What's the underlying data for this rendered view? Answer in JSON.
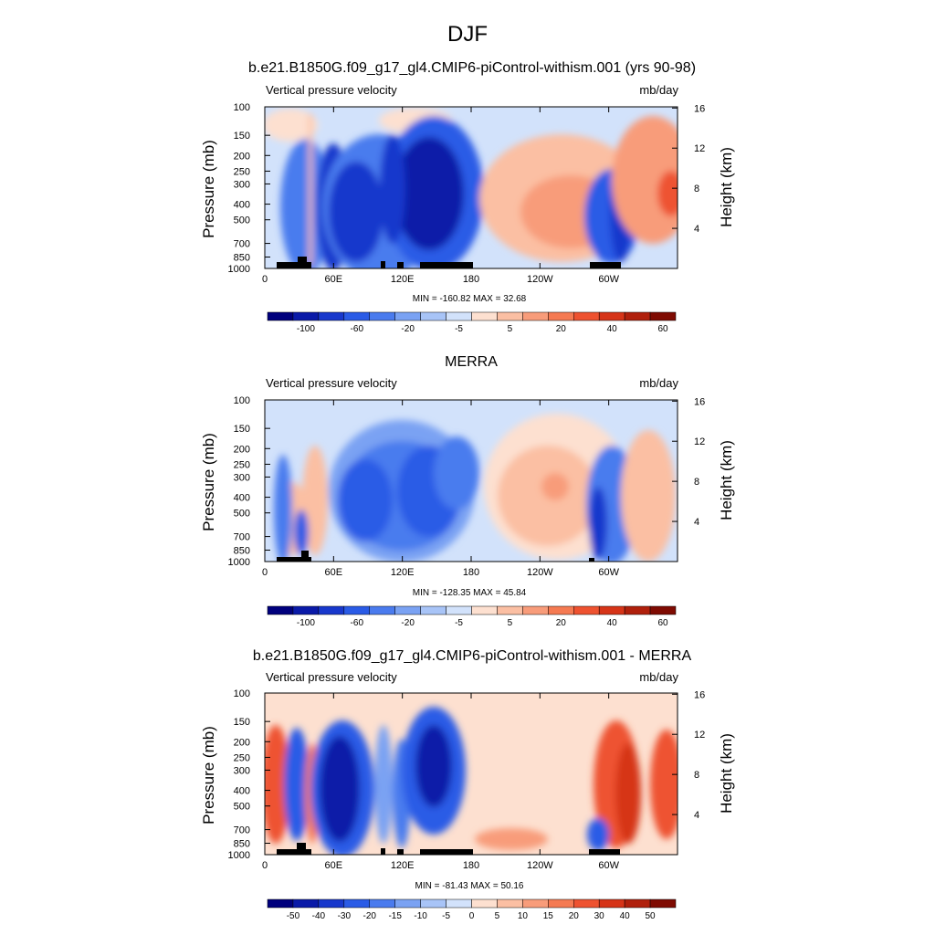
{
  "page": {
    "title": "DJF"
  },
  "chart_data": [
    {
      "type": "heatmap",
      "title": "b.e21.B1850G.f09_g17_gl4.CMIP6-piControl-withism.001 (yrs 90-98)",
      "left_string": "Vertical pressure velocity",
      "right_string": "mb/day",
      "ylabel": "Pressure (mb)",
      "ylabel_right": "Height (km)",
      "x_ticks": [
        "0",
        "60E",
        "120E",
        "180",
        "120W",
        "60W"
      ],
      "y_ticks": [
        "100",
        "150",
        "200",
        "250",
        "300",
        "400",
        "500",
        "700",
        "850",
        "1000"
      ],
      "y_ticks_right": [
        "4",
        "8",
        "12",
        "16"
      ],
      "stats": "MIN = -160.82  MAX =  32.68",
      "colorbar_labels": [
        "-100",
        "-60",
        "-20",
        "-5",
        "5",
        "20",
        "40",
        "60"
      ],
      "xlim": [
        0,
        360
      ],
      "ylim": [
        1000,
        100
      ],
      "y_scale": "log",
      "colors": [
        "#00007d",
        "#0a1aa8",
        "#1838cc",
        "#2a5be6",
        "#4a7bee",
        "#7aa2f3",
        "#a8c4f7",
        "#d2e2fb",
        "#fde0d0",
        "#fbbfa3",
        "#f89c7a",
        "#f57a52",
        "#ee5230",
        "#d63418",
        "#b0200c",
        "#7f0b02"
      ]
    },
    {
      "type": "heatmap",
      "title": "MERRA",
      "left_string": "Vertical pressure velocity",
      "right_string": "mb/day",
      "ylabel": "Pressure (mb)",
      "ylabel_right": "Height (km)",
      "x_ticks": [
        "0",
        "60E",
        "120E",
        "180",
        "120W",
        "60W"
      ],
      "y_ticks": [
        "100",
        "150",
        "200",
        "250",
        "300",
        "400",
        "500",
        "700",
        "850",
        "1000"
      ],
      "y_ticks_right": [
        "4",
        "8",
        "12",
        "16"
      ],
      "stats": "MIN = -128.35  MAX =  45.84",
      "colorbar_labels": [
        "-100",
        "-60",
        "-20",
        "-5",
        "5",
        "20",
        "40",
        "60"
      ],
      "xlim": [
        0,
        360
      ],
      "ylim": [
        1000,
        100
      ],
      "y_scale": "log",
      "colors": [
        "#00007d",
        "#0a1aa8",
        "#1838cc",
        "#2a5be6",
        "#4a7bee",
        "#7aa2f3",
        "#a8c4f7",
        "#d2e2fb",
        "#fde0d0",
        "#fbbfa3",
        "#f89c7a",
        "#f57a52",
        "#ee5230",
        "#d63418",
        "#b0200c",
        "#7f0b02"
      ]
    },
    {
      "type": "heatmap",
      "title": "b.e21.B1850G.f09_g17_gl4.CMIP6-piControl-withism.001 - MERRA",
      "left_string": "Vertical pressure velocity",
      "right_string": "mb/day",
      "ylabel": "Pressure (mb)",
      "ylabel_right": "Height (km)",
      "x_ticks": [
        "0",
        "60E",
        "120E",
        "180",
        "120W",
        "60W"
      ],
      "y_ticks": [
        "100",
        "150",
        "200",
        "250",
        "300",
        "400",
        "500",
        "700",
        "850",
        "1000"
      ],
      "y_ticks_right": [
        "4",
        "8",
        "12",
        "16"
      ],
      "stats": "MIN = -81.43  MAX =  50.16",
      "colorbar_labels": [
        "-50",
        "-40",
        "-30",
        "-20",
        "-15",
        "-10",
        "-5",
        "0",
        "5",
        "10",
        "15",
        "20",
        "30",
        "40",
        "50"
      ],
      "xlim": [
        0,
        360
      ],
      "ylim": [
        1000,
        100
      ],
      "y_scale": "log",
      "colors": [
        "#00007d",
        "#0a1aa8",
        "#1838cc",
        "#2a5be6",
        "#4a7bee",
        "#7aa2f3",
        "#a8c4f7",
        "#d2e2fb",
        "#fde0d0",
        "#fbbfa3",
        "#f89c7a",
        "#f57a52",
        "#ee5230",
        "#d63418",
        "#b0200c",
        "#7f0b02"
      ]
    }
  ]
}
